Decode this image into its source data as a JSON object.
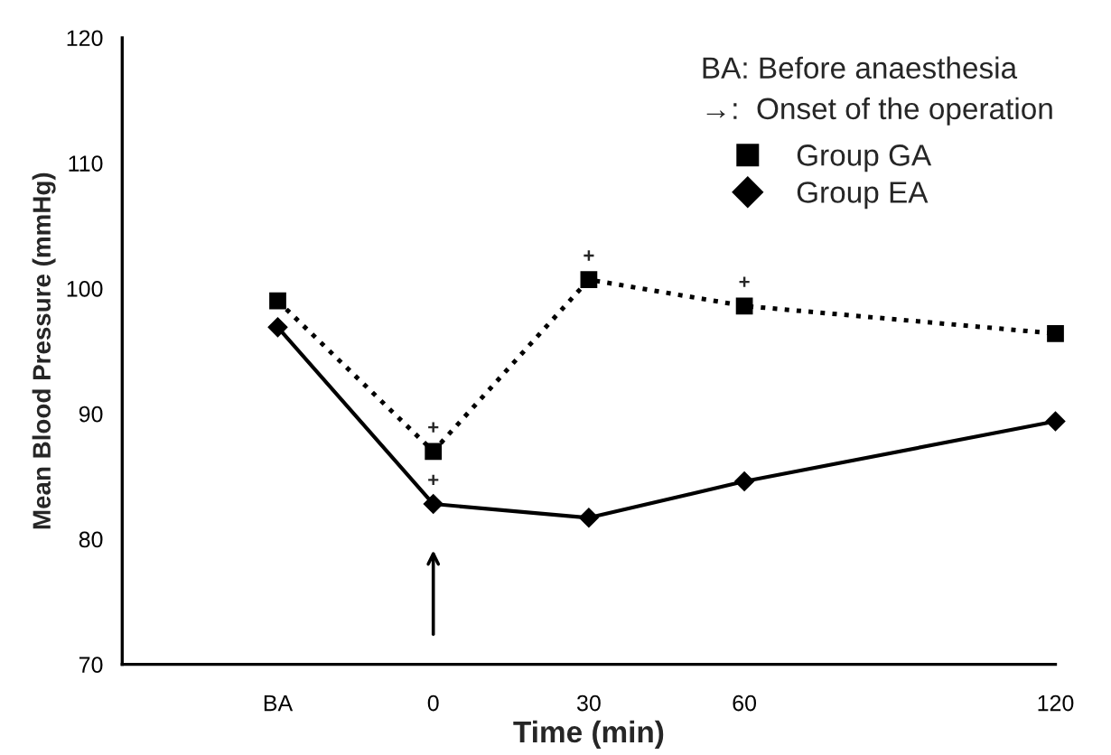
{
  "chart_data": {
    "type": "line",
    "x": [
      -30,
      0,
      30,
      60,
      120
    ],
    "xlim": [
      -60,
      120
    ],
    "xticks": [
      {
        "value": -30,
        "label": "BA"
      },
      0,
      30,
      60,
      120
    ],
    "ylim": [
      70,
      120
    ],
    "yticks": [
      70,
      80,
      90,
      100,
      110,
      120
    ],
    "xlabel": "Time (min)",
    "ylabel": "Mean Blood Pressure (mmHg)",
    "series": [
      {
        "name": "Group GA",
        "color": "#000000",
        "marker": "square",
        "line_style": "dotted",
        "values": [
          99,
          87,
          100.7,
          98.6,
          96.4
        ]
      },
      {
        "name": "Group EA",
        "color": "#000000",
        "marker": "diamond",
        "line_style": "solid",
        "values": [
          96.9,
          82.8,
          81.7,
          84.6,
          89.4
        ]
      }
    ],
    "legend": "top right",
    "grid": false,
    "annotations": [
      "BA: Before anaesthesia",
      "→:  Onset of the operation",
      {
        "text": "+",
        "x": 0,
        "y": 87
      },
      {
        "text": "+",
        "x": 0,
        "y": 82.8
      },
      {
        "text": "+",
        "x": 30,
        "y": 100.7
      },
      {
        "text": "+",
        "x": 60,
        "y": 98.6
      }
    ]
  }
}
